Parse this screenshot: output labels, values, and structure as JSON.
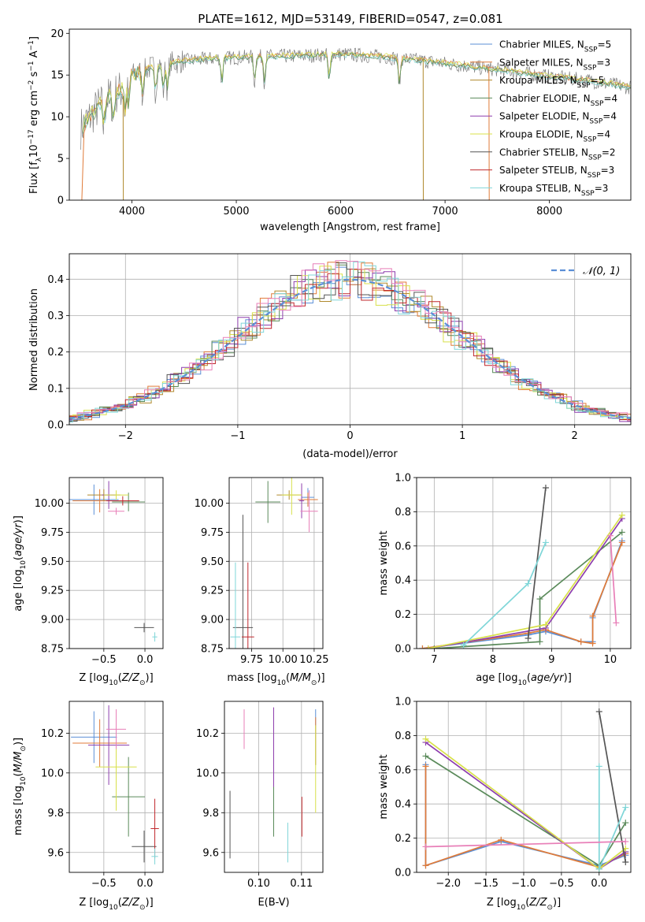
{
  "title": "PLATE=1612, MJD=53149, FIBERID=0547, z=0.081",
  "colors": {
    "Chabrier MILES": "#5b8fd6",
    "Salpeter MILES": "#e07b39",
    "Kroupa MILES": "#b08a2e",
    "Chabrier ELODIE": "#5a8a5a",
    "Salpeter ELODIE": "#8e3fae",
    "Kroupa ELODIE": "#d8e04a",
    "Chabrier STELIB": "#555555",
    "Salpeter STELIB": "#c0282d",
    "Kroupa STELIB": "#7fd6d8",
    "extra": "#e87fb8"
  },
  "chart_data": [
    {
      "type": "line",
      "name": "spectrum",
      "title": "PLATE=1612, MJD=53149, FIBERID=0547, z=0.081",
      "xlabel": "wavelength [Angstrom, rest frame]",
      "ylabel_parts": {
        "pre": "Flux [f",
        "sub": "λ",
        "mid": "10",
        "sup1": "−17",
        "post": " erg cm",
        "sup2": "−2",
        "post2": " s",
        "sup3": "−1",
        "post3": " A",
        "sup4": "−1",
        "end": "]"
      },
      "xlim": [
        3400,
        8780
      ],
      "ylim": [
        0,
        20.5
      ],
      "xticks": [
        4000,
        5000,
        6000,
        7000,
        8000
      ],
      "yticks": [
        0,
        5,
        10,
        15,
        20
      ],
      "continuum": [
        [
          3500,
          8.5
        ],
        [
          3600,
          10
        ],
        [
          3700,
          11.5
        ],
        [
          3800,
          12.5
        ],
        [
          3900,
          13.2
        ],
        [
          4000,
          15
        ],
        [
          4200,
          16
        ],
        [
          4500,
          16.7
        ],
        [
          4800,
          17
        ],
        [
          5200,
          17.2
        ],
        [
          5600,
          17.3
        ],
        [
          6000,
          17.5
        ],
        [
          6400,
          17.2
        ],
        [
          6800,
          16.7
        ],
        [
          7200,
          16.1
        ],
        [
          7600,
          15.5
        ],
        [
          8000,
          14.8
        ],
        [
          8400,
          14.3
        ],
        [
          8780,
          13.5
        ]
      ],
      "legend": [
        {
          "imf": "Chabrier MILES",
          "n": "5"
        },
        {
          "imf": "Salpeter MILES",
          "n": "3"
        },
        {
          "imf": "Kroupa MILES",
          "n": "5"
        },
        {
          "imf": "Chabrier ELODIE",
          "n": "4"
        },
        {
          "imf": "Salpeter ELODIE",
          "n": "4"
        },
        {
          "imf": "Kroupa ELODIE",
          "n": "4"
        },
        {
          "imf": "Chabrier STELIB",
          "n": "2"
        },
        {
          "imf": "Salpeter STELIB",
          "n": "3"
        },
        {
          "imf": "Kroupa STELIB",
          "n": "3"
        }
      ]
    },
    {
      "type": "histogram",
      "name": "residuals",
      "xlabel": "(data-model)/error",
      "ylabel": "Normed distribution",
      "xlim": [
        -2.5,
        2.5
      ],
      "ylim": [
        0,
        0.47
      ],
      "xticks": [
        -2,
        -1,
        0,
        1,
        2
      ],
      "yticks": [
        0.0,
        0.1,
        0.2,
        0.3,
        0.4
      ],
      "legend": "𝒩(0, 1)"
    },
    {
      "type": "scatter",
      "name": "age-vs-Z",
      "xlabel": "Z [log10(Z/Z⊙)]",
      "ylabel": "age  [log10(age/yr)]",
      "xlim": [
        -0.92,
        0.22
      ],
      "ylim": [
        8.75,
        10.22
      ],
      "xticks": [
        -0.5,
        0.0
      ],
      "yticks": [
        8.75,
        9.0,
        9.25,
        9.5,
        9.75,
        10.0
      ],
      "points": [
        {
          "c": "Chabrier MILES",
          "x": -0.62,
          "y": 10.03,
          "xe": 0.3,
          "ye": 0.13
        },
        {
          "c": "Salpeter MILES",
          "x": -0.55,
          "y": 10.02,
          "xe": 0.33,
          "ye": 0.1
        },
        {
          "c": "Kroupa MILES",
          "x": -0.5,
          "y": 10.07,
          "xe": 0.2,
          "ye": 0.05
        },
        {
          "c": "Chabrier ELODIE",
          "x": -0.2,
          "y": 10.01,
          "xe": 0.2,
          "ye": 0.08
        },
        {
          "c": "Salpeter ELODIE",
          "x": -0.44,
          "y": 10.07,
          "xe": 0.08,
          "ye": 0.12
        },
        {
          "c": "Kroupa ELODIE",
          "x": -0.35,
          "y": 10.07,
          "xe": 0.15,
          "ye": 0.04
        },
        {
          "c": "Chabrier STELIB",
          "x": -0.01,
          "y": 8.93,
          "xe": 0.12,
          "ye": 0.04
        },
        {
          "c": "Salpeter STELIB",
          "x": -0.27,
          "y": 10.02,
          "xe": 0.2,
          "ye": 0.04
        },
        {
          "c": "Kroupa STELIB",
          "x": 0.12,
          "y": 8.85,
          "xe": 0.03,
          "ye": 0.04
        },
        {
          "c": "extra",
          "x": -0.35,
          "y": 9.93,
          "xe": 0.1,
          "ye": 0.03
        }
      ]
    },
    {
      "type": "scatter",
      "name": "age-vs-mass",
      "xlabel": "mass [log10(M/M⊙)]",
      "ylabel": "",
      "xlim": [
        9.57,
        10.32
      ],
      "ylim": [
        8.75,
        10.22
      ],
      "xticks": [
        9.75,
        10.0,
        10.25
      ],
      "yticks": [
        8.75,
        9.0,
        9.25,
        9.5,
        9.75,
        10.0
      ],
      "points": [
        {
          "c": "Chabrier MILES",
          "x": 10.2,
          "y": 10.05,
          "xe": 0.05,
          "ye": 0.08
        },
        {
          "c": "Salpeter MILES",
          "x": 10.2,
          "y": 10.03,
          "xe": 0.08,
          "ye": 0.06
        },
        {
          "c": "Kroupa MILES",
          "x": 10.05,
          "y": 10.07,
          "xe": 0.1,
          "ye": 0.04
        },
        {
          "c": "Chabrier ELODIE",
          "x": 9.88,
          "y": 10.01,
          "xe": 0.1,
          "ye": 0.18
        },
        {
          "c": "Salpeter ELODIE",
          "x": 10.15,
          "y": 10.02,
          "xe": 0.02,
          "ye": 0.15
        },
        {
          "c": "Kroupa ELODIE",
          "x": 10.07,
          "y": 10.07,
          "xe": 0.08,
          "ye": 0.17
        },
        {
          "c": "Chabrier STELIB",
          "x": 9.68,
          "y": 8.93,
          "xe": 0.08,
          "ye": 0.97
        },
        {
          "c": "Salpeter STELIB",
          "x": 9.72,
          "y": 8.85,
          "xe": 0.05,
          "ye": 0.64
        },
        {
          "c": "Kroupa STELIB",
          "x": 9.62,
          "y": 8.85,
          "xe": 0.04,
          "ye": 0.64
        },
        {
          "c": "extra",
          "x": 10.21,
          "y": 9.93,
          "xe": 0.07,
          "ye": 0.18
        }
      ]
    },
    {
      "type": "line",
      "name": "mass-weight-vs-age",
      "xlabel": "age  [log10(age/yr)]",
      "ylabel": "mass weight",
      "xlim": [
        6.7,
        10.35
      ],
      "ylim": [
        0,
        1.0
      ],
      "xticks": [
        7,
        8,
        9,
        10
      ],
      "yticks": [
        0.0,
        0.2,
        0.4,
        0.6,
        0.8,
        1.0
      ],
      "series": [
        {
          "c": "Chabrier MILES",
          "x": [
            6.8,
            8.6,
            8.9,
            9.5,
            9.7,
            9.7,
            10.2
          ],
          "y": [
            0.0,
            0.08,
            0.1,
            0.04,
            0.04,
            0.18,
            0.63
          ]
        },
        {
          "c": "Salpeter MILES",
          "x": [
            6.8,
            8.6,
            8.9,
            9.5,
            9.7,
            9.7,
            10.2
          ],
          "y": [
            0.0,
            0.09,
            0.11,
            0.04,
            0.03,
            0.19,
            0.62
          ]
        },
        {
          "c": "Chabrier ELODIE",
          "x": [
            7.0,
            8.8,
            8.8,
            10.2
          ],
          "y": [
            0.0,
            0.04,
            0.29,
            0.68
          ]
        },
        {
          "c": "Salpeter ELODIE",
          "x": [
            6.9,
            8.9,
            10.2
          ],
          "y": [
            0.0,
            0.12,
            0.76
          ]
        },
        {
          "c": "Kroupa ELODIE",
          "x": [
            6.9,
            8.9,
            10.2
          ],
          "y": [
            0.0,
            0.14,
            0.78
          ]
        },
        {
          "c": "Chabrier STELIB",
          "x": [
            8.6,
            8.9
          ],
          "y": [
            0.06,
            0.94
          ]
        },
        {
          "c": "Kroupa STELIB",
          "x": [
            7.5,
            8.6,
            8.9
          ],
          "y": [
            0.02,
            0.38,
            0.62
          ]
        },
        {
          "c": "extra",
          "x": [
            10.0,
            10.1
          ],
          "y": [
            0.66,
            0.15
          ]
        }
      ]
    },
    {
      "type": "scatter",
      "name": "mass-vs-Z",
      "xlabel": "Z [log10(Z/Z⊙)]",
      "ylabel": "mass [log10(M/M⊙)]",
      "xlim": [
        -0.92,
        0.22
      ],
      "ylim": [
        9.5,
        10.36
      ],
      "xticks": [
        -0.5,
        0.0
      ],
      "yticks": [
        9.6,
        9.8,
        10.0,
        10.2
      ],
      "points": [
        {
          "c": "Chabrier MILES",
          "x": -0.62,
          "y": 10.18,
          "xe": 0.28,
          "ye": 0.13
        },
        {
          "c": "Salpeter MILES",
          "x": -0.55,
          "y": 10.15,
          "xe": 0.33,
          "ye": 0.12
        },
        {
          "c": "Chabrier ELODIE",
          "x": -0.2,
          "y": 9.88,
          "xe": 0.2,
          "ye": 0.2
        },
        {
          "c": "Salpeter ELODIE",
          "x": -0.44,
          "y": 10.14,
          "xe": 0.25,
          "ye": 0.2
        },
        {
          "c": "Kroupa ELODIE",
          "x": -0.35,
          "y": 10.03,
          "xe": 0.25,
          "ye": 0.22
        },
        {
          "c": "Chabrier STELIB",
          "x": -0.01,
          "y": 9.63,
          "xe": 0.15,
          "ye": 0.08
        },
        {
          "c": "Salpeter STELIB",
          "x": 0.12,
          "y": 9.72,
          "xe": 0.05,
          "ye": 0.15
        },
        {
          "c": "Kroupa STELIB",
          "x": 0.12,
          "y": 9.58,
          "xe": 0.04,
          "ye": 0.04
        },
        {
          "c": "extra",
          "x": -0.35,
          "y": 10.22,
          "xe": 0.12,
          "ye": 0.1
        }
      ]
    },
    {
      "type": "scatter",
      "name": "mass-vs-EBV",
      "xlabel": "E(B-V)",
      "ylabel": "",
      "xlim": [
        0.092,
        0.115
      ],
      "ylim": [
        9.5,
        10.36
      ],
      "xticks": [
        0.1,
        0.11
      ],
      "xtick_labels": [
        "0.10",
        "0.11"
      ],
      "yticks": [
        9.6,
        9.8,
        10.0,
        10.2
      ],
      "points": [
        {
          "c": "Chabrier MILES",
          "x": 0.1133,
          "y": 10.18,
          "ye": 0.14
        },
        {
          "c": "Salpeter MILES",
          "x": 0.1133,
          "y": 10.16,
          "ye": 0.12
        },
        {
          "c": "Chabrier ELODIE",
          "x": 0.1035,
          "y": 9.88,
          "ye": 0.2
        },
        {
          "c": "Salpeter ELODIE",
          "x": 0.1035,
          "y": 10.13,
          "ye": 0.2
        },
        {
          "c": "Kroupa ELODIE",
          "x": 0.1133,
          "y": 10.02,
          "ye": 0.22
        },
        {
          "c": "Chabrier STELIB",
          "x": 0.0933,
          "y": 9.74,
          "ye": 0.17
        },
        {
          "c": "Salpeter STELIB",
          "x": 0.1101,
          "y": 9.78,
          "ye": 0.1
        },
        {
          "c": "Kroupa STELIB",
          "x": 0.1068,
          "y": 9.65,
          "ye": 0.1
        },
        {
          "c": "extra",
          "x": 0.0966,
          "y": 10.22,
          "ye": 0.1
        }
      ]
    },
    {
      "type": "line",
      "name": "mass-weight-vs-Z",
      "xlabel": "Z [log10(Z/Z⊙)]",
      "ylabel": "mass weight",
      "xlim": [
        -2.42,
        0.42
      ],
      "ylim": [
        0,
        1.0
      ],
      "xticks": [
        -2.0,
        -1.5,
        -1.0,
        -0.5,
        0.0
      ],
      "yticks": [
        0.0,
        0.2,
        0.4,
        0.6,
        0.8,
        1.0
      ],
      "series": [
        {
          "c": "Chabrier MILES",
          "x": [
            -2.3,
            -2.3,
            -1.3,
            0.0,
            0.35
          ],
          "y": [
            0.63,
            0.04,
            0.18,
            0.04,
            0.1
          ]
        },
        {
          "c": "Salpeter MILES",
          "x": [
            -2.3,
            -2.3,
            -1.3,
            0.0,
            0.35
          ],
          "y": [
            0.62,
            0.04,
            0.19,
            0.03,
            0.11
          ]
        },
        {
          "c": "Chabrier ELODIE",
          "x": [
            -2.3,
            0.0,
            0.35
          ],
          "y": [
            0.68,
            0.04,
            0.29
          ]
        },
        {
          "c": "Salpeter ELODIE",
          "x": [
            -2.3,
            0.0,
            0.35
          ],
          "y": [
            0.76,
            0.02,
            0.12
          ]
        },
        {
          "c": "Kroupa ELODIE",
          "x": [
            -2.3,
            0.0,
            0.35
          ],
          "y": [
            0.78,
            0.02,
            0.14
          ]
        },
        {
          "c": "Chabrier STELIB",
          "x": [
            0.0,
            0.35
          ],
          "y": [
            0.94,
            0.06
          ]
        },
        {
          "c": "Kroupa STELIB",
          "x": [
            0.0,
            0.0,
            0.35
          ],
          "y": [
            0.62,
            0.02,
            0.38
          ]
        },
        {
          "c": "extra",
          "x": [
            -2.3,
            0.35
          ],
          "y": [
            0.15,
            0.18
          ]
        }
      ]
    }
  ]
}
